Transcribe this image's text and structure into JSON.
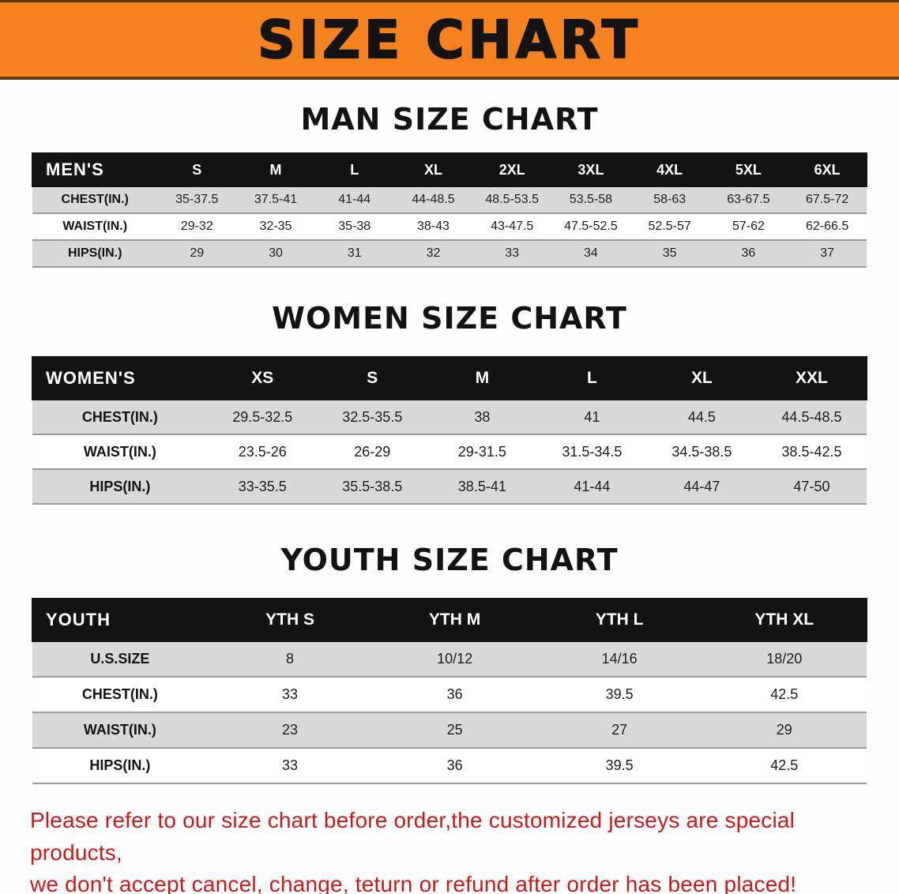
{
  "banner": {
    "title": "SIZE CHART",
    "background_color": "#f5821f",
    "title_color": "#141414"
  },
  "chart_data": [
    {
      "type": "table",
      "title": "MAN SIZE CHART",
      "header": [
        "MEN'S",
        "S",
        "M",
        "L",
        "XL",
        "2XL",
        "3XL",
        "4XL",
        "5XL",
        "6XL"
      ],
      "rows": [
        [
          "CHEST(IN.)",
          "35-37.5",
          "37.5-41",
          "41-44",
          "44-48.5",
          "48.5-53.5",
          "53.5-58",
          "58-63",
          "63-67.5",
          "67.5-72"
        ],
        [
          "WAIST(IN.)",
          "29-32",
          "32-35",
          "35-38",
          "38-43",
          "43-47.5",
          "47.5-52.5",
          "52.5-57",
          "57-62",
          "62-66.5"
        ],
        [
          "HIPS(IN.)",
          "29",
          "30",
          "31",
          "32",
          "33",
          "34",
          "35",
          "36",
          "37"
        ]
      ]
    },
    {
      "type": "table",
      "title": "WOMEN SIZE CHART",
      "header": [
        "WOMEN'S",
        "XS",
        "S",
        "M",
        "L",
        "XL",
        "XXL"
      ],
      "rows": [
        [
          "CHEST(IN.)",
          "29.5-32.5",
          "32.5-35.5",
          "38",
          "41",
          "44.5",
          "44.5-48.5"
        ],
        [
          "WAIST(IN.)",
          "23.5-26",
          "26-29",
          "29-31.5",
          "31.5-34.5",
          "34.5-38.5",
          "38.5-42.5"
        ],
        [
          "HIPS(IN.)",
          "33-35.5",
          "35.5-38.5",
          "38.5-41",
          "41-44",
          "44-47",
          "47-50"
        ]
      ]
    },
    {
      "type": "table",
      "title": "YOUTH SIZE CHART",
      "header": [
        "YOUTH",
        "YTH S",
        "YTH M",
        "YTH L",
        "YTH XL"
      ],
      "rows": [
        [
          "U.S.SIZE",
          "8",
          "10/12",
          "14/16",
          "18/20"
        ],
        [
          "CHEST(IN.)",
          "33",
          "36",
          "39.5",
          "42.5"
        ],
        [
          "WAIST(IN.)",
          "23",
          "25",
          "27",
          "29"
        ],
        [
          "HIPS(IN.)",
          "33",
          "36",
          "39.5",
          "42.5"
        ]
      ]
    }
  ],
  "footer": {
    "line1": "Please refer to our size chart before order,the customized jerseys are special products,",
    "line2": "we don't accept cancel, change, teturn or refund after order has been placed!",
    "text_color": "#c81a1a"
  }
}
